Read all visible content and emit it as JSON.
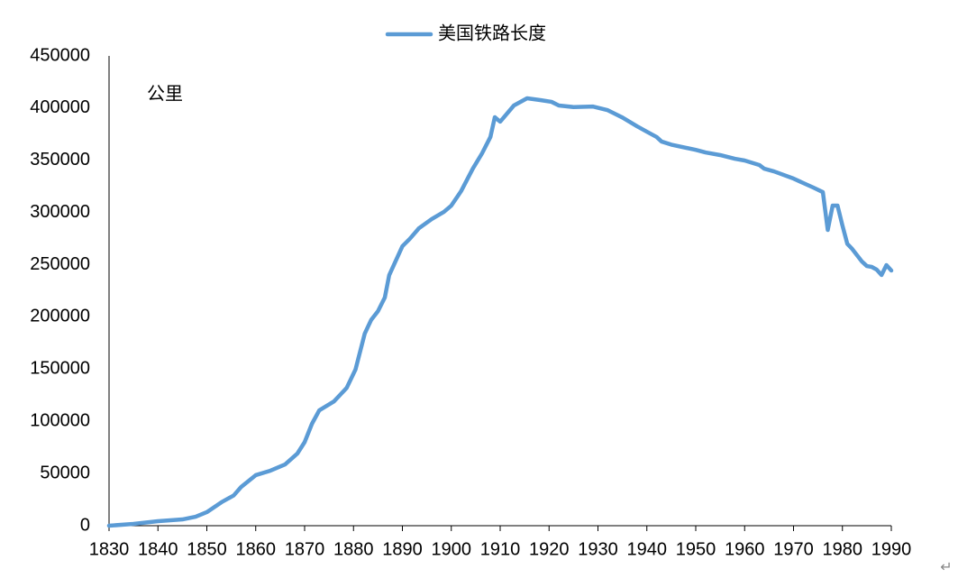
{
  "chart_data": {
    "type": "line",
    "series": [
      {
        "name": "美国铁路长度",
        "color": "#5b9bd5",
        "values": [
          0,
          1700,
          4300,
          6000,
          8600,
          13000,
          22500,
          29000,
          37000,
          48400,
          52700,
          58700,
          69000,
          80000,
          97600,
          110500,
          119000,
          132000,
          149500,
          184000,
          197000,
          205500,
          218500,
          240000,
          267700,
          274700,
          285000,
          293700,
          300600,
          306600,
          320400,
          342000,
          356700,
          372300,
          391300,
          387000,
          402500,
          409400,
          407700,
          406000,
          402500,
          401000,
          401500,
          398000,
          391000,
          382600,
          377400,
          372300,
          368000,
          365000,
          360000,
          357500,
          355000,
          351500,
          349800,
          345500,
          342000,
          339400,
          332500,
          328200,
          324000,
          319500,
          283300,
          306600,
          306600,
          287600,
          270000,
          265100,
          253000,
          248700,
          247900,
          245300,
          240100,
          249600,
          244400
        ]
      }
    ],
    "x": [
      1830,
      1835,
      1840,
      1845,
      1847.7,
      1850,
      1853,
      1855.5,
      1857,
      1860,
      1863,
      1866,
      1868.5,
      1870,
      1871.5,
      1873,
      1876,
      1878.6,
      1880.4,
      1882.3,
      1883.6,
      1885,
      1886.4,
      1887.3,
      1890,
      1891.5,
      1893.4,
      1896,
      1898.5,
      1900,
      1902,
      1904.4,
      1906.3,
      1908,
      1908.9,
      1910,
      1912.8,
      1915.5,
      1918.2,
      1920.5,
      1922,
      1925,
      1929,
      1932,
      1935,
      1938,
      1940,
      1942,
      1943,
      1945,
      1950,
      1952,
      1955,
      1958,
      1960,
      1963,
      1964,
      1966,
      1970,
      1972,
      1974,
      1976,
      1977,
      1978,
      1979,
      1980,
      1981,
      1982,
      1984,
      1985,
      1986,
      1987,
      1988,
      1989,
      1990
    ],
    "xlim": [
      1830,
      1990
    ],
    "xticks": [
      1830,
      1840,
      1850,
      1860,
      1870,
      1880,
      1890,
      1900,
      1910,
      1920,
      1930,
      1940,
      1950,
      1960,
      1970,
      1980,
      1990
    ],
    "ylim": [
      0,
      450000
    ],
    "yticks": [
      0,
      50000,
      100000,
      150000,
      200000,
      250000,
      300000,
      350000,
      400000,
      450000
    ],
    "y_label": "公里",
    "legend": "top",
    "end_mark": "↵"
  }
}
